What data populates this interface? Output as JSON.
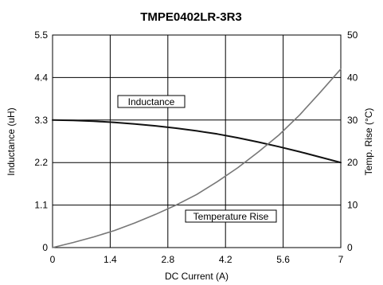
{
  "chart_data": {
    "type": "line",
    "title": "TMPE0402LR-3R3",
    "xlabel": "DC Current (A)",
    "ylabel_left": "Inductance (uH)",
    "ylabel_right": "Temp. Rise (°C)",
    "xlim": [
      0,
      7
    ],
    "ylim_left": [
      0,
      5.5
    ],
    "ylim_right": [
      0,
      50
    ],
    "x_ticks": [
      "0",
      "1.4",
      "2.8",
      "4.2",
      "5.6",
      "7"
    ],
    "y_left_ticks": [
      "0",
      "1.1",
      "2.2",
      "3.3",
      "4.4",
      "5.5"
    ],
    "y_right_ticks": [
      "0",
      "10",
      "20",
      "30",
      "40",
      "50"
    ],
    "grid": true,
    "series": [
      {
        "name": "Inductance",
        "axis": "left",
        "color": "#111111",
        "x": [
          0,
          0.5,
          1.0,
          1.5,
          2.0,
          2.5,
          3.0,
          3.5,
          4.0,
          4.5,
          5.0,
          5.5,
          6.0,
          6.5,
          7.0
        ],
        "y": [
          3.3,
          3.29,
          3.27,
          3.24,
          3.2,
          3.15,
          3.09,
          3.02,
          2.94,
          2.84,
          2.73,
          2.61,
          2.48,
          2.34,
          2.2
        ]
      },
      {
        "name": "Temperature Rise",
        "axis": "right",
        "color": "#777777",
        "x": [
          0,
          0.5,
          1.0,
          1.5,
          2.0,
          2.5,
          3.0,
          3.5,
          4.0,
          4.5,
          5.0,
          5.5,
          6.0,
          6.5,
          7.0
        ],
        "y": [
          0,
          1.2,
          2.5,
          4.0,
          5.8,
          7.8,
          10.0,
          12.5,
          15.5,
          18.8,
          22.5,
          26.5,
          31.2,
          36.5,
          42.0
        ]
      }
    ]
  }
}
